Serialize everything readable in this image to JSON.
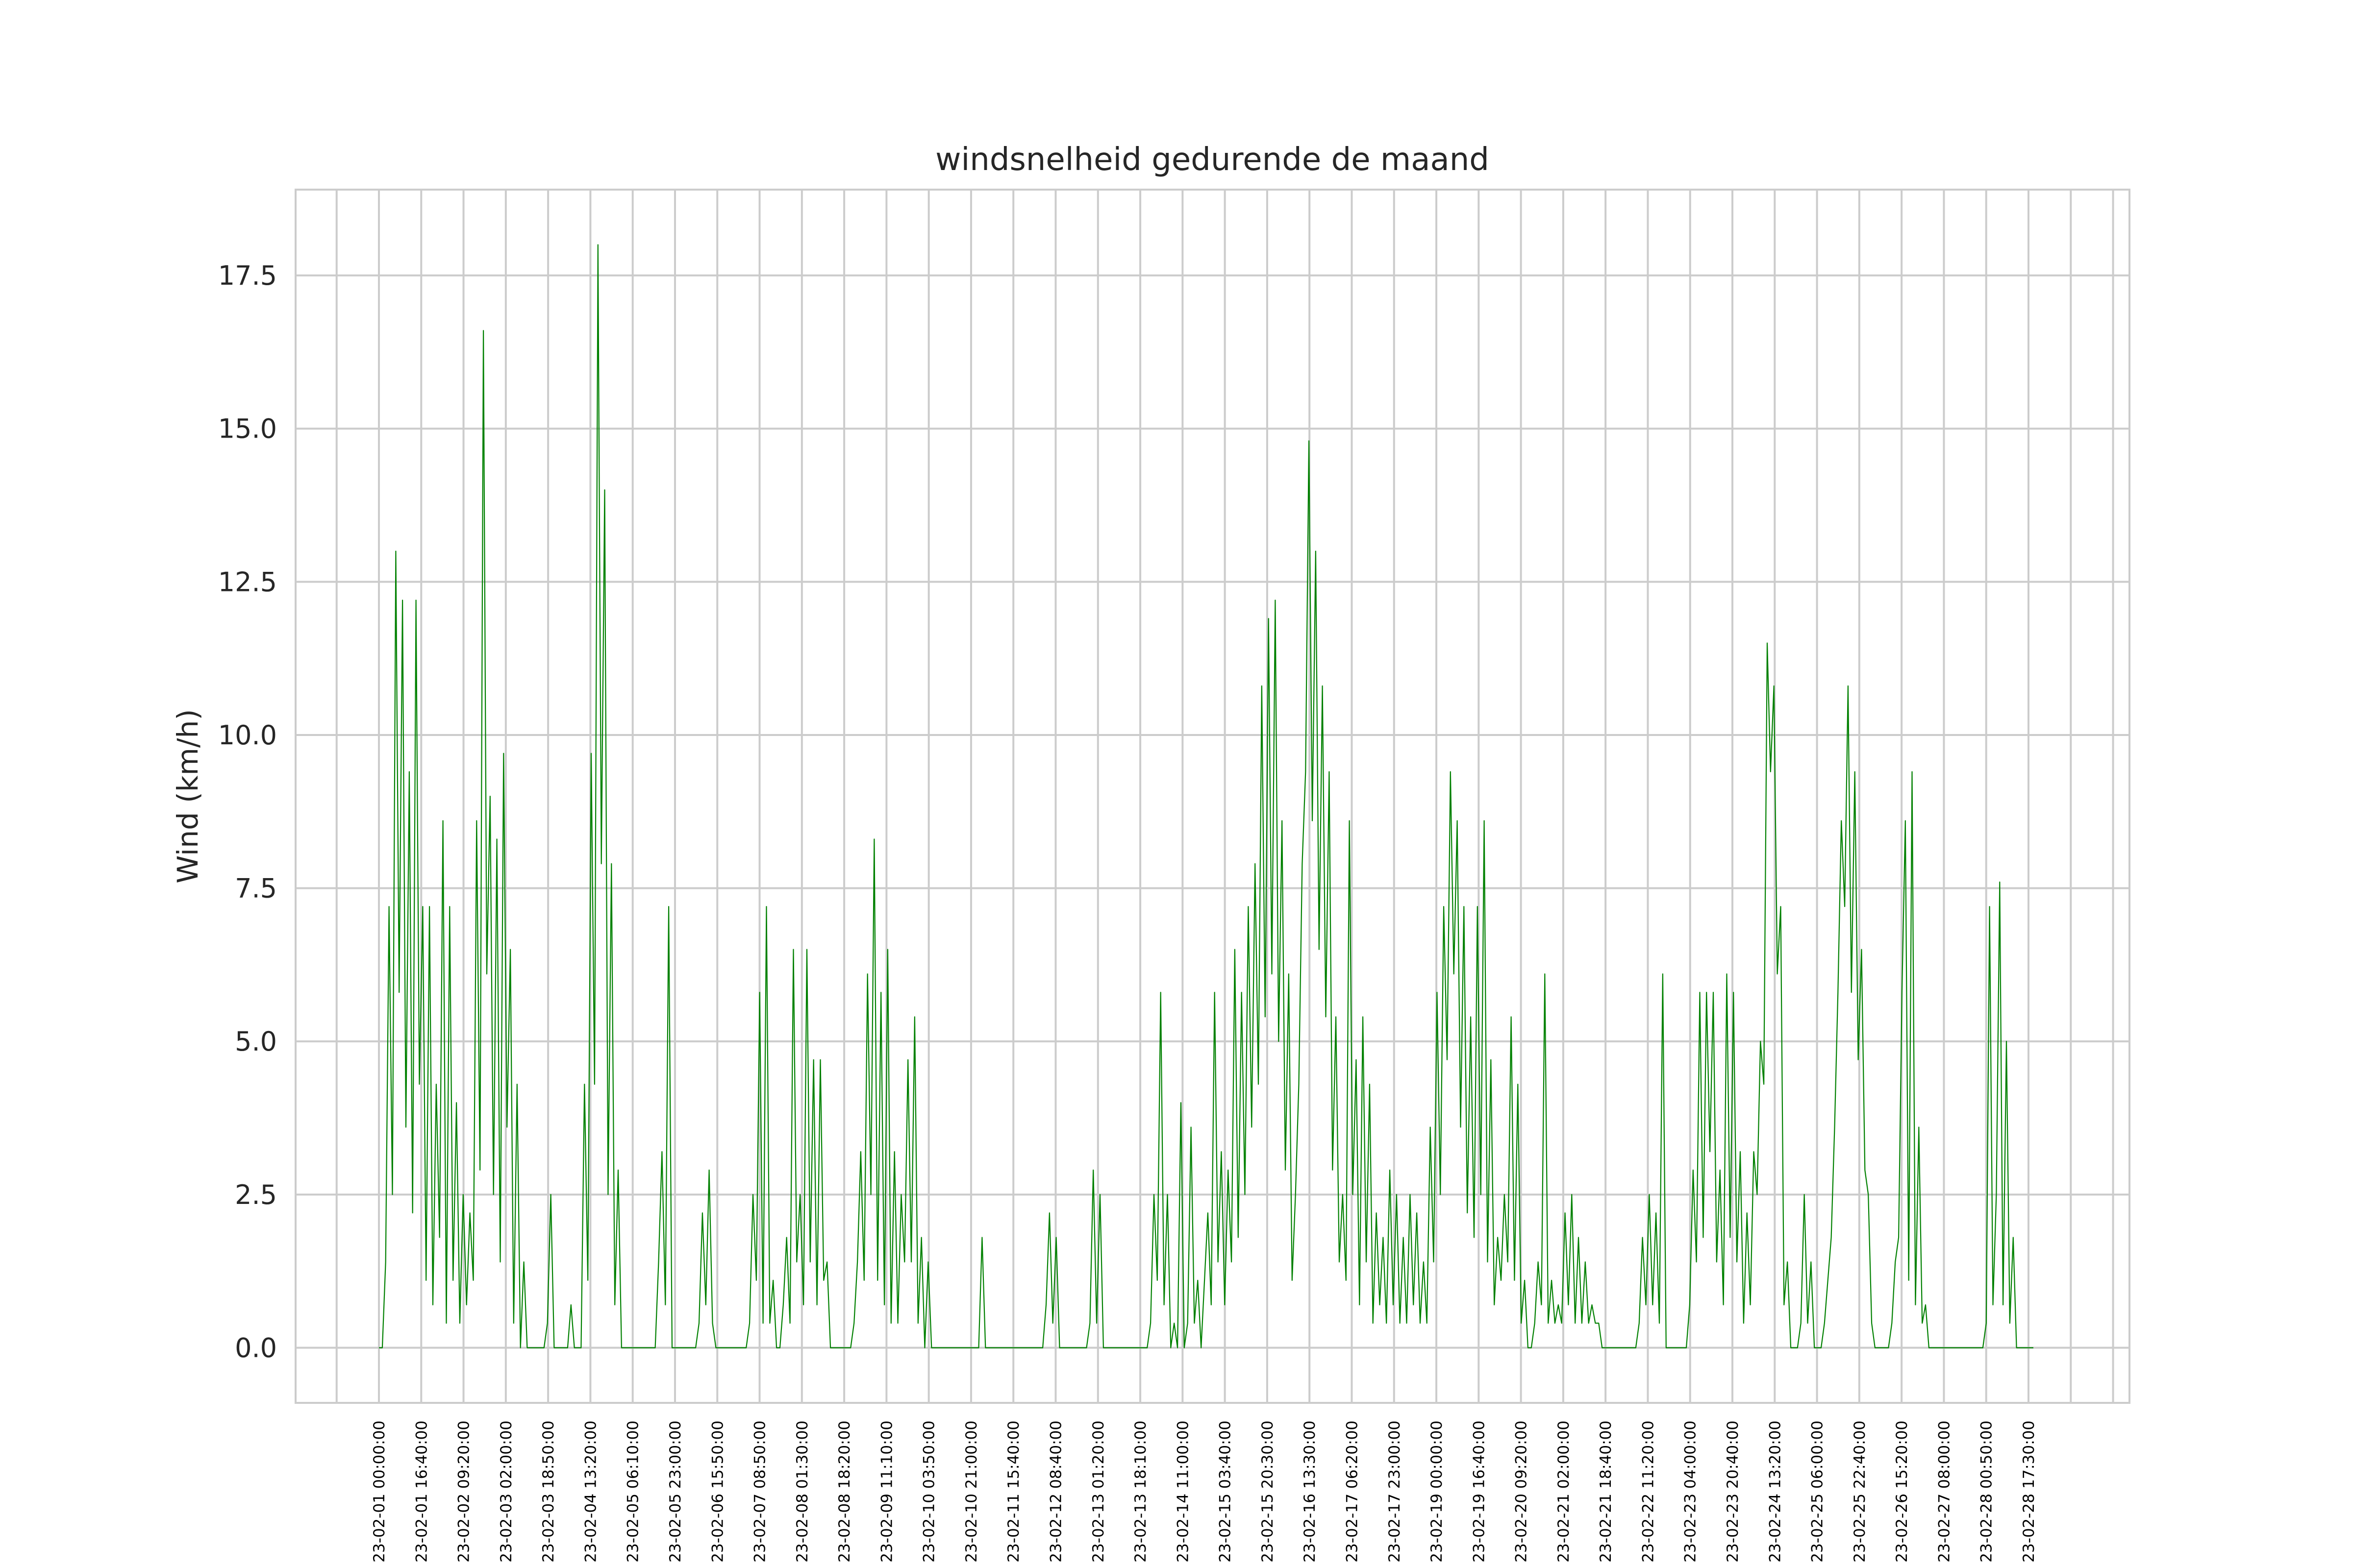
{
  "chart_data": {
    "type": "line",
    "title": "windsnelheid gedurende de maand",
    "xlabel": "",
    "ylabel": "Wind (km/h)",
    "ylim": [
      -0.9,
      18.9
    ],
    "yticks": [
      0.0,
      2.5,
      5.0,
      7.5,
      10.0,
      12.5,
      15.0,
      17.5
    ],
    "ytick_labels": [
      "0.0",
      "2.5",
      "5.0",
      "7.5",
      "10.0",
      "12.5",
      "15.0",
      "17.5"
    ],
    "grid": true,
    "color": "#008000",
    "xtick_labels": [
      "23-02-01 00:00:00",
      "23-02-01 16:40:00",
      "23-02-02 09:20:00",
      "23-02-03 02:00:00",
      "23-02-03 18:50:00",
      "23-02-04 13:20:00",
      "23-02-05 06:10:00",
      "23-02-05 23:00:00",
      "23-02-06 15:50:00",
      "23-02-07 08:50:00",
      "23-02-08 01:30:00",
      "23-02-08 18:20:00",
      "23-02-09 11:10:00",
      "23-02-10 03:50:00",
      "23-02-10 21:00:00",
      "23-02-11 15:40:00",
      "23-02-12 08:40:00",
      "23-02-13 01:20:00",
      "23-02-13 18:10:00",
      "23-02-14 11:00:00",
      "23-02-15 03:40:00",
      "23-02-15 20:30:00",
      "23-02-16 13:30:00",
      "23-02-17 06:20:00",
      "23-02-17 23:00:00",
      "23-02-19 00:00:00",
      "23-02-19 16:40:00",
      "23-02-20 09:20:00",
      "23-02-21 02:00:00",
      "23-02-21 18:40:00",
      "23-02-22 11:20:00",
      "23-02-23 04:00:00",
      "23-02-23 20:40:00",
      "23-02-24 13:20:00",
      "23-02-25 06:00:00",
      "23-02-25 22:40:00",
      "23-02-26 15:20:00",
      "23-02-27 08:00:00",
      "23-02-28 00:50:00",
      "23-02-28 17:30:00"
    ],
    "series": [
      {
        "values": [
          0,
          0,
          1.4,
          7.2,
          2.5,
          13.0,
          5.8,
          12.2,
          3.6,
          9.4,
          2.2,
          12.2,
          4.3,
          7.2,
          1.1,
          7.2,
          0.7,
          4.3,
          1.8,
          8.6,
          0.4,
          7.2,
          1.1,
          4.0,
          0.4,
          2.5,
          0.7,
          2.2,
          1.1,
          8.6,
          2.9,
          16.6,
          6.1,
          9.0,
          2.5,
          8.3,
          1.4,
          9.7,
          3.6,
          6.5,
          0.4,
          4.3,
          0,
          1.4,
          0,
          0,
          0,
          0,
          0,
          0,
          0.4,
          2.5,
          0,
          0,
          0,
          0,
          0,
          0.7,
          0,
          0,
          0,
          4.3,
          1.1,
          9.7,
          4.3,
          18.0,
          7.9,
          14.0,
          2.5,
          7.9,
          0.7,
          2.9,
          0,
          0,
          0,
          0,
          0,
          0,
          0,
          0,
          0,
          0,
          0,
          1.4,
          3.2,
          0.7,
          7.2,
          0,
          0,
          0,
          0,
          0,
          0,
          0,
          0,
          0.4,
          2.2,
          0.7,
          2.9,
          0.4,
          0,
          0,
          0,
          0,
          0,
          0,
          0,
          0,
          0,
          0,
          0.4,
          2.5,
          1.1,
          5.8,
          0.4,
          7.2,
          0.4,
          1.1,
          0,
          0,
          0.7,
          1.8,
          0.4,
          6.5,
          1.4,
          2.5,
          0.7,
          6.5,
          1.4,
          4.7,
          0.7,
          4.7,
          1.1,
          1.4,
          0,
          0,
          0,
          0,
          0,
          0,
          0,
          0.4,
          1.4,
          3.2,
          1.1,
          6.1,
          2.5,
          8.3,
          1.1,
          5.8,
          0.7,
          6.5,
          0.4,
          3.2,
          0.4,
          2.5,
          1.4,
          4.7,
          1.4,
          5.4,
          0.4,
          1.8,
          0,
          1.4,
          0,
          0,
          0,
          0,
          0,
          0,
          0,
          0,
          0,
          0,
          0,
          0,
          0,
          0,
          0,
          1.8,
          0,
          0,
          0,
          0,
          0,
          0,
          0,
          0,
          0,
          0,
          0,
          0,
          0,
          0,
          0,
          0,
          0,
          0,
          0.7,
          2.2,
          0.4,
          1.8,
          0,
          0,
          0,
          0,
          0,
          0,
          0,
          0,
          0,
          0.4,
          2.9,
          0.4,
          2.5,
          0,
          0,
          0,
          0,
          0,
          0,
          0,
          0,
          0,
          0,
          0,
          0,
          0,
          0,
          0.4,
          2.5,
          1.1,
          5.8,
          0.7,
          2.5,
          0,
          0.4,
          0,
          4.0,
          0,
          0.4,
          3.6,
          0.4,
          1.1,
          0,
          1.1,
          2.2,
          0.7,
          5.8,
          1.4,
          3.2,
          0.7,
          2.9,
          1.4,
          6.5,
          1.8,
          5.8,
          2.5,
          7.2,
          3.6,
          7.9,
          4.3,
          10.8,
          5.4,
          11.9,
          6.1,
          12.2,
          5.0,
          8.6,
          2.9,
          6.1,
          1.1,
          2.5,
          4.3,
          7.9,
          9.4,
          14.8,
          8.6,
          13.0,
          6.5,
          10.8,
          5.4,
          9.4,
          2.9,
          5.4,
          1.4,
          2.5,
          1.1,
          8.6,
          2.5,
          4.7,
          0.7,
          5.4,
          1.4,
          4.3,
          0.4,
          2.2,
          0.7,
          1.8,
          0.4,
          2.9,
          0.7,
          2.5,
          0.4,
          1.8,
          0.4,
          2.5,
          0.7,
          2.2,
          0.4,
          1.4,
          0.4,
          3.6,
          1.4,
          5.8,
          2.5,
          7.2,
          4.7,
          9.4,
          6.1,
          8.6,
          3.6,
          7.2,
          2.2,
          5.4,
          1.8,
          7.2,
          2.5,
          8.6,
          1.4,
          4.7,
          0.7,
          1.8,
          1.1,
          2.5,
          1.4,
          5.4,
          1.1,
          4.3,
          0.4,
          1.1,
          0,
          0,
          0.4,
          1.4,
          0.7,
          6.1,
          0.4,
          1.1,
          0.4,
          0.7,
          0.4,
          2.2,
          0.7,
          2.5,
          0.4,
          1.8,
          0.4,
          1.4,
          0.4,
          0.7,
          0.4,
          0.4,
          0,
          0,
          0,
          0,
          0,
          0,
          0,
          0,
          0,
          0,
          0,
          0.4,
          1.8,
          0.7,
          2.5,
          0.7,
          2.2,
          0.4,
          6.1,
          0,
          0,
          0,
          0,
          0,
          0,
          0,
          0.7,
          2.9,
          1.4,
          5.8,
          1.8,
          5.8,
          3.2,
          5.8,
          1.4,
          2.9,
          0.7,
          6.1,
          1.8,
          5.8,
          1.4,
          3.2,
          0.4,
          2.2,
          0.7,
          3.2,
          2.5,
          5.0,
          4.3,
          11.5,
          9.4,
          10.8,
          6.1,
          7.2,
          0.7,
          1.4,
          0,
          0,
          0,
          0.4,
          2.5,
          0.4,
          1.4,
          0,
          0,
          0,
          0.4,
          1.1,
          1.8,
          3.6,
          5.8,
          8.6,
          7.2,
          10.8,
          5.8,
          9.4,
          4.7,
          6.5,
          2.9,
          2.5,
          0.4,
          0,
          0,
          0,
          0,
          0,
          0.4,
          1.4,
          1.8,
          5.8,
          8.6,
          1.1,
          9.4,
          0.7,
          3.6,
          0.4,
          0.7,
          0,
          0,
          0,
          0,
          0,
          0,
          0,
          0,
          0,
          0,
          0,
          0,
          0,
          0,
          0,
          0,
          0,
          0.4,
          7.2,
          0.7,
          2.5,
          7.6,
          0.7,
          5.0,
          0.4,
          1.8,
          0,
          0,
          0,
          0,
          0,
          0
        ]
      }
    ]
  }
}
